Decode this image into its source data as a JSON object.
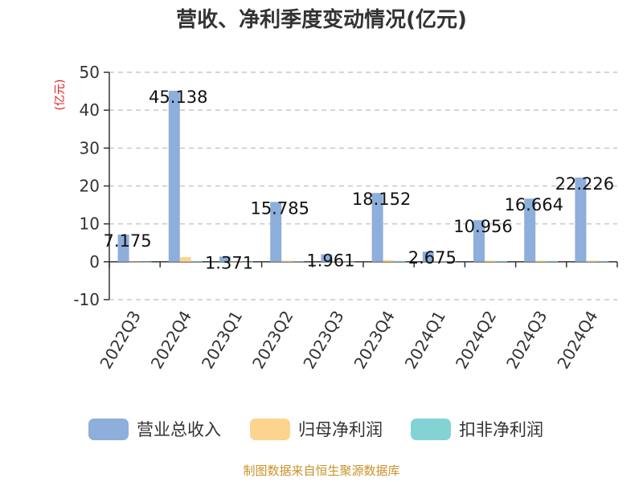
{
  "title": "营收、净利季度变动情况(亿元)",
  "unit_label": "(亿元)",
  "source_text": "制图数据来自恒生聚源数据库",
  "colors": {
    "revenue": "#8eaedb",
    "net_profit": "#fcd38f",
    "deducted_profit": "#84d3d4",
    "unit": "#e02020",
    "source": "#c8922a",
    "grid": "#c8c8c8"
  },
  "chart_data": {
    "type": "bar",
    "title": "营收、净利季度变动情况(亿元)",
    "ylabel": "(亿元)",
    "xlabel": "",
    "ylim": [
      -10,
      50
    ],
    "yticks": [
      -10,
      0,
      10,
      20,
      30,
      40,
      50
    ],
    "grid": true,
    "legend_position": "bottom",
    "categories": [
      "2022Q3",
      "2022Q4",
      "2023Q1",
      "2023Q2",
      "2023Q3",
      "2023Q4",
      "2024Q1",
      "2024Q2",
      "2024Q3",
      "2024Q4"
    ],
    "series": [
      {
        "name": "营业总收入",
        "values": [
          7.175,
          45.138,
          1.371,
          15.785,
          1.961,
          18.152,
          2.675,
          10.956,
          16.664,
          22.226
        ],
        "labels": [
          "7.175",
          "45.138",
          "1.371",
          "15.785",
          "1.961",
          "18.152",
          "2.675",
          "10.956",
          "16.664",
          "22.226"
        ]
      },
      {
        "name": "归母净利润",
        "values": [
          0.05,
          1.2,
          0.05,
          0.3,
          0.1,
          0.4,
          0.1,
          0.3,
          0.3,
          0.3
        ]
      },
      {
        "name": "扣非净利润",
        "values": [
          0.03,
          0.2,
          0.03,
          0.1,
          0.05,
          0.2,
          0.05,
          0.2,
          0.2,
          0.2
        ]
      }
    ]
  }
}
